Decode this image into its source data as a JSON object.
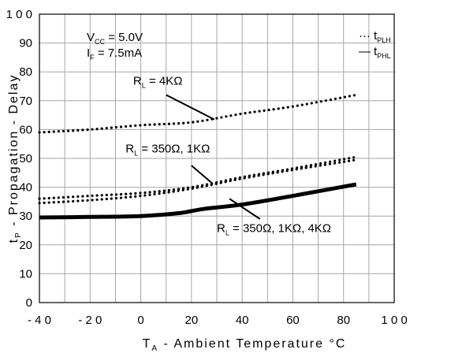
{
  "chart_data": {
    "type": "line",
    "title": "",
    "xlabel": {
      "main": "T",
      "sub": "A",
      "rest": " - Ambient Temperature ",
      "unit": "°C"
    },
    "ylabel": {
      "main": "t",
      "sub": "P",
      "rest": " - Propagation - Delay"
    },
    "xlim": [
      -40,
      100
    ],
    "ylim": [
      0,
      100
    ],
    "x_ticks": [
      -40,
      -20,
      0,
      20,
      40,
      60,
      80,
      100
    ],
    "y_ticks": [
      0,
      10,
      20,
      30,
      40,
      50,
      60,
      70,
      80,
      90,
      100
    ],
    "x_tick_labels": [
      "- 4 0",
      "- 2 0",
      "0",
      "20",
      "40",
      "60",
      "80",
      "1 0 0"
    ],
    "y_tick_labels": [
      "0",
      "10",
      "20",
      "30",
      "40",
      "50",
      "60",
      "70",
      "80",
      "90",
      "1 0 0"
    ],
    "grid": true,
    "conditions": [
      {
        "main": "V",
        "sub": "CC",
        "rest": " = 5.0V"
      },
      {
        "main": "I",
        "sub": "F",
        "rest": " = 7.5mA"
      }
    ],
    "legend": {
      "position": "top-right",
      "items": [
        {
          "sym": "···",
          "main": "t",
          "sub": "PLH",
          "style": "dotted"
        },
        {
          "sym": "—",
          "main": "t",
          "sub": "PHL",
          "style": "solid"
        }
      ]
    },
    "series": [
      {
        "style": "dotted",
        "x": [
          -40,
          -20,
          0,
          20,
          40,
          60,
          85
        ],
        "y": [
          59,
          60,
          61.5,
          62.5,
          65.5,
          68,
          72
        ]
      },
      {
        "style": "dotted",
        "x": [
          -40,
          -20,
          0,
          20,
          40,
          60,
          85
        ],
        "y": [
          36,
          37,
          38,
          40,
          43.5,
          46.5,
          50.5
        ]
      },
      {
        "style": "dotted",
        "x": [
          -40,
          -20,
          0,
          20,
          40,
          60,
          85
        ],
        "y": [
          34.5,
          35.5,
          37,
          39.5,
          43,
          46,
          49.5
        ]
      },
      {
        "style": "solid",
        "x": [
          -40,
          -20,
          0,
          15,
          25,
          40,
          60,
          85
        ],
        "y": [
          29.5,
          29.7,
          30,
          31,
          32.5,
          34,
          37,
          41
        ]
      }
    ],
    "annotations": [
      {
        "main": "R",
        "sub": "L",
        "rest": " = 4KΩ",
        "text_at": [
          -3,
          75.5
        ],
        "arrow_from": [
          10,
          72
        ],
        "arrow_to": [
          29,
          63.5
        ]
      },
      {
        "main": "R",
        "sub": "L",
        "rest": " = 350Ω, 1KΩ",
        "text_at": [
          -6,
          52
        ],
        "arrow_from": [
          20,
          47.5
        ],
        "arrow_to": [
          28,
          41.5
        ]
      },
      {
        "main": "R",
        "sub": "L",
        "rest": " = 350Ω, 1KΩ, 4KΩ",
        "text_at": [
          30,
          24.5
        ],
        "arrow_from": [
          47,
          29
        ],
        "arrow_to": [
          35,
          36
        ]
      }
    ]
  }
}
